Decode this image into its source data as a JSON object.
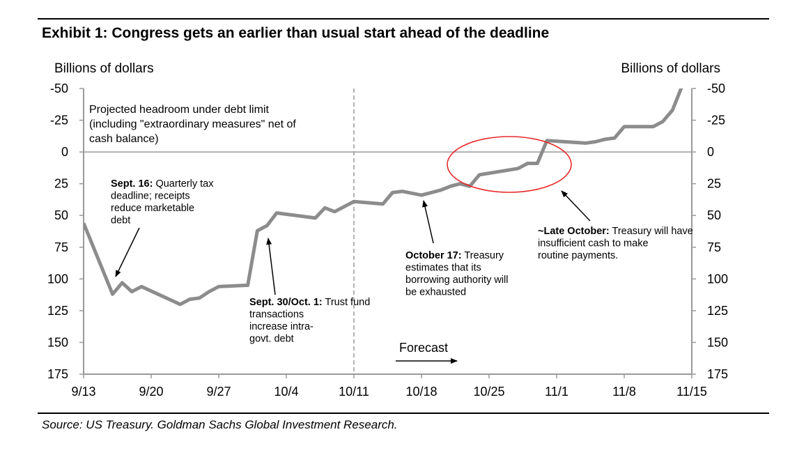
{
  "title": "Exhibit 1: Congress gets an earlier than usual start ahead of the deadline",
  "source": "Source: US Treasury. Goldman Sachs Global Investment Research.",
  "colors": {
    "series": "#8c8c8c",
    "highlight": "#e8292a",
    "axis": "#999999",
    "text": "#000000"
  },
  "chart_data": {
    "type": "line",
    "ylabel_left": "Billions of dollars",
    "ylabel_right": "Billions of dollars",
    "y_axis_inverted": true,
    "ylim": [
      -50,
      175
    ],
    "yticks": [
      "-50",
      "-25",
      "0",
      "25",
      "50",
      "75",
      "100",
      "125",
      "150",
      "175"
    ],
    "xticks": [
      "9/13",
      "9/20",
      "9/27",
      "10/4",
      "10/11",
      "10/18",
      "10/25",
      "11/1",
      "11/8",
      "11/15"
    ],
    "forecast_start": "10/11",
    "forecast_label": "Forecast",
    "inset_label": [
      "Projected headroom under debt limit",
      "(including \"extraordinary measures\" net of",
      "cash balance)"
    ],
    "series": [
      {
        "x": [
          "9/13",
          "9/16",
          "9/17",
          "9/18",
          "9/19",
          "9/23",
          "9/24",
          "9/25",
          "9/26",
          "9/27",
          "9/30",
          "10/1",
          "10/2",
          "10/3",
          "10/7",
          "10/8",
          "10/9",
          "10/11",
          "10/14",
          "10/15",
          "10/16",
          "10/18",
          "10/20",
          "10/21",
          "10/22",
          "10/23",
          "10/24",
          "10/28",
          "10/29",
          "10/30",
          "10/31",
          "11/4",
          "11/5",
          "11/6",
          "11/7",
          "11/8",
          "11/10",
          "11/11",
          "11/12",
          "11/13",
          "11/14"
        ],
        "values": [
          56,
          112,
          103,
          110,
          106,
          120,
          116,
          115,
          110,
          106,
          105,
          62,
          58,
          48,
          52,
          44,
          47,
          39,
          41,
          32,
          31,
          34,
          30,
          27,
          25,
          27,
          18,
          13,
          9,
          9,
          -9,
          -7,
          -8,
          -10,
          -11,
          -20,
          -20,
          -20,
          -24,
          -33,
          -52
        ]
      }
    ],
    "annotations": [
      {
        "bold": "Sept. 16:",
        "text": [
          "Quarterly tax",
          "deadline; receipts",
          "reduce marketable",
          "debt"
        ]
      },
      {
        "bold": "Sept. 30/Oct. 1:",
        "text": [
          "Trust fund",
          "transactions",
          "increase intra-",
          "govt. debt"
        ]
      },
      {
        "bold": "October 17:",
        "text": [
          "Treasury",
          "estimates that its",
          "borrowing authority will",
          "be exhausted"
        ]
      },
      {
        "bold": "~Late October:",
        "text": [
          "Treasury will have",
          "insufficient cash to make",
          "routine payments."
        ]
      }
    ]
  }
}
